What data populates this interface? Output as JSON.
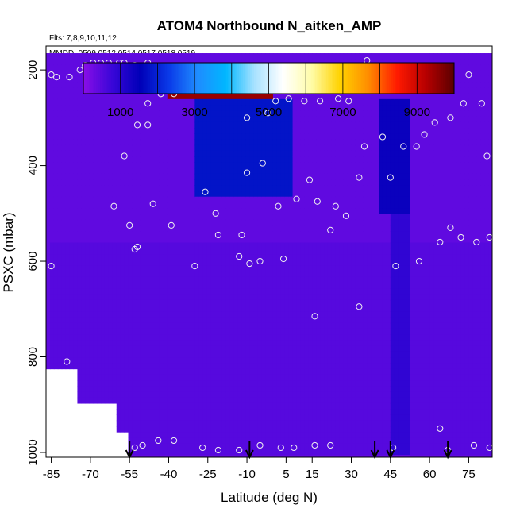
{
  "chart_data": {
    "type": "heatmap",
    "title": "ATOM4 Northbound N_aitken_AMP",
    "subtitle_flights": "Flts: 7,8,9,10,11,12",
    "subtitle_dates": "MMDD: 0509,0512,0514,0517,0518,0519",
    "xlabel": "Latitude (deg N)",
    "ylabel": "PSXC (mbar)",
    "xlim": [
      -87,
      84
    ],
    "ylim": [
      1010,
      150
    ],
    "x_ticks": [
      -85,
      -70,
      -55,
      -40,
      -25,
      -10,
      5,
      15,
      30,
      45,
      60,
      75
    ],
    "y_ticks": [
      200,
      400,
      600,
      800,
      1000
    ],
    "colorbar": {
      "range": [
        0,
        10000
      ],
      "tick_values": [
        1000,
        3000,
        5000,
        7000,
        9000
      ],
      "colors": [
        "#8a0ee8",
        "#3a06d8",
        "#0000b8",
        "#0a3ae8",
        "#1f8cff",
        "#00b7ff",
        "#a8e2ff",
        "#ffffff",
        "#fffca8",
        "#ffd200",
        "#ff8c00",
        "#ff1a00",
        "#b80000",
        "#5a0000"
      ]
    },
    "background_level": 400,
    "features": [
      {
        "lat": [
          -86,
          84
        ],
        "p": [
          560,
          1010
        ],
        "value": 500
      },
      {
        "lat": [
          -40,
          0
        ],
        "p": [
          215,
          260
        ],
        "value": 9500
      },
      {
        "lat": [
          -30,
          8
        ],
        "p": [
          260,
          470
        ],
        "value": 1800
      },
      {
        "lat": [
          40,
          52
        ],
        "p": [
          260,
          500
        ],
        "value": 1400
      },
      {
        "lat": [
          45,
          53
        ],
        "p": [
          300,
          1000
        ],
        "value": 900
      }
    ],
    "flight_descent_markers_lat": [
      -55,
      -9,
      39,
      45,
      67
    ],
    "observation_points": [
      {
        "lat": -85,
        "p": 210
      },
      {
        "lat": -83,
        "p": 215
      },
      {
        "lat": -78,
        "p": 215
      },
      {
        "lat": -74,
        "p": 200
      },
      {
        "lat": -72,
        "p": 190
      },
      {
        "lat": -69,
        "p": 185
      },
      {
        "lat": -66,
        "p": 185
      },
      {
        "lat": -63,
        "p": 185
      },
      {
        "lat": -59,
        "p": 185
      },
      {
        "lat": -57,
        "p": 185
      },
      {
        "lat": -53,
        "p": 190
      },
      {
        "lat": -48,
        "p": 185
      },
      {
        "lat": -52,
        "p": 315
      },
      {
        "lat": -48,
        "p": 315
      },
      {
        "lat": -48,
        "p": 270
      },
      {
        "lat": -43,
        "p": 250
      },
      {
        "lat": -38,
        "p": 250
      },
      {
        "lat": -28,
        "p": 230
      },
      {
        "lat": -20,
        "p": 210
      },
      {
        "lat": -10,
        "p": 300
      },
      {
        "lat": -2,
        "p": 290
      },
      {
        "lat": 1,
        "p": 265
      },
      {
        "lat": 6,
        "p": 260
      },
      {
        "lat": 12,
        "p": 265
      },
      {
        "lat": 18,
        "p": 265
      },
      {
        "lat": 25,
        "p": 260
      },
      {
        "lat": 29,
        "p": 265
      },
      {
        "lat": 36,
        "p": 180
      },
      {
        "lat": -57,
        "p": 380
      },
      {
        "lat": -46,
        "p": 480
      },
      {
        "lat": -39,
        "p": 525
      },
      {
        "lat": -26,
        "p": 455
      },
      {
        "lat": -22,
        "p": 500
      },
      {
        "lat": -21,
        "p": 545
      },
      {
        "lat": -12,
        "p": 545
      },
      {
        "lat": -10,
        "p": 415
      },
      {
        "lat": -4,
        "p": 395
      },
      {
        "lat": 2,
        "p": 485
      },
      {
        "lat": 9,
        "p": 470
      },
      {
        "lat": 14,
        "p": 430
      },
      {
        "lat": 22,
        "p": 535
      },
      {
        "lat": 17,
        "p": 475
      },
      {
        "lat": 28,
        "p": 505
      },
      {
        "lat": 33,
        "p": 425
      },
      {
        "lat": 35,
        "p": 360
      },
      {
        "lat": 42,
        "p": 340
      },
      {
        "lat": 45,
        "p": 425
      },
      {
        "lat": 50,
        "p": 360
      },
      {
        "lat": 55,
        "p": 360
      },
      {
        "lat": 58,
        "p": 335
      },
      {
        "lat": 62,
        "p": 310
      },
      {
        "lat": 68,
        "p": 300
      },
      {
        "lat": 73,
        "p": 270
      },
      {
        "lat": 75,
        "p": 210
      },
      {
        "lat": 80,
        "p": 270
      },
      {
        "lat": 82,
        "p": 380
      },
      {
        "lat": -61,
        "p": 485
      },
      {
        "lat": -55,
        "p": 525
      },
      {
        "lat": -52,
        "p": 570
      },
      {
        "lat": -53,
        "p": 575
      },
      {
        "lat": -30,
        "p": 610
      },
      {
        "lat": -13,
        "p": 590
      },
      {
        "lat": -9,
        "p": 605
      },
      {
        "lat": -5,
        "p": 600
      },
      {
        "lat": 4,
        "p": 595
      },
      {
        "lat": 24,
        "p": 485
      },
      {
        "lat": 33,
        "p": 695
      },
      {
        "lat": 16,
        "p": 715
      },
      {
        "lat": 47,
        "p": 610
      },
      {
        "lat": 56,
        "p": 600
      },
      {
        "lat": 64,
        "p": 560
      },
      {
        "lat": 68,
        "p": 530
      },
      {
        "lat": 72,
        "p": 550
      },
      {
        "lat": 78,
        "p": 560
      },
      {
        "lat": 83,
        "p": 550
      },
      {
        "lat": -85,
        "p": 610
      },
      {
        "lat": -79,
        "p": 810
      },
      {
        "lat": -53,
        "p": 990
      },
      {
        "lat": -50,
        "p": 985
      },
      {
        "lat": -44,
        "p": 975
      },
      {
        "lat": -38,
        "p": 975
      },
      {
        "lat": -27,
        "p": 990
      },
      {
        "lat": -21,
        "p": 995
      },
      {
        "lat": -13,
        "p": 995
      },
      {
        "lat": -5,
        "p": 985
      },
      {
        "lat": 3,
        "p": 990
      },
      {
        "lat": 8,
        "p": 990
      },
      {
        "lat": 16,
        "p": 985
      },
      {
        "lat": 22,
        "p": 985
      },
      {
        "lat": 46,
        "p": 990
      },
      {
        "lat": 64,
        "p": 950
      },
      {
        "lat": 67,
        "p": 995
      },
      {
        "lat": 77,
        "p": 985
      },
      {
        "lat": 83,
        "p": 990
      }
    ]
  }
}
